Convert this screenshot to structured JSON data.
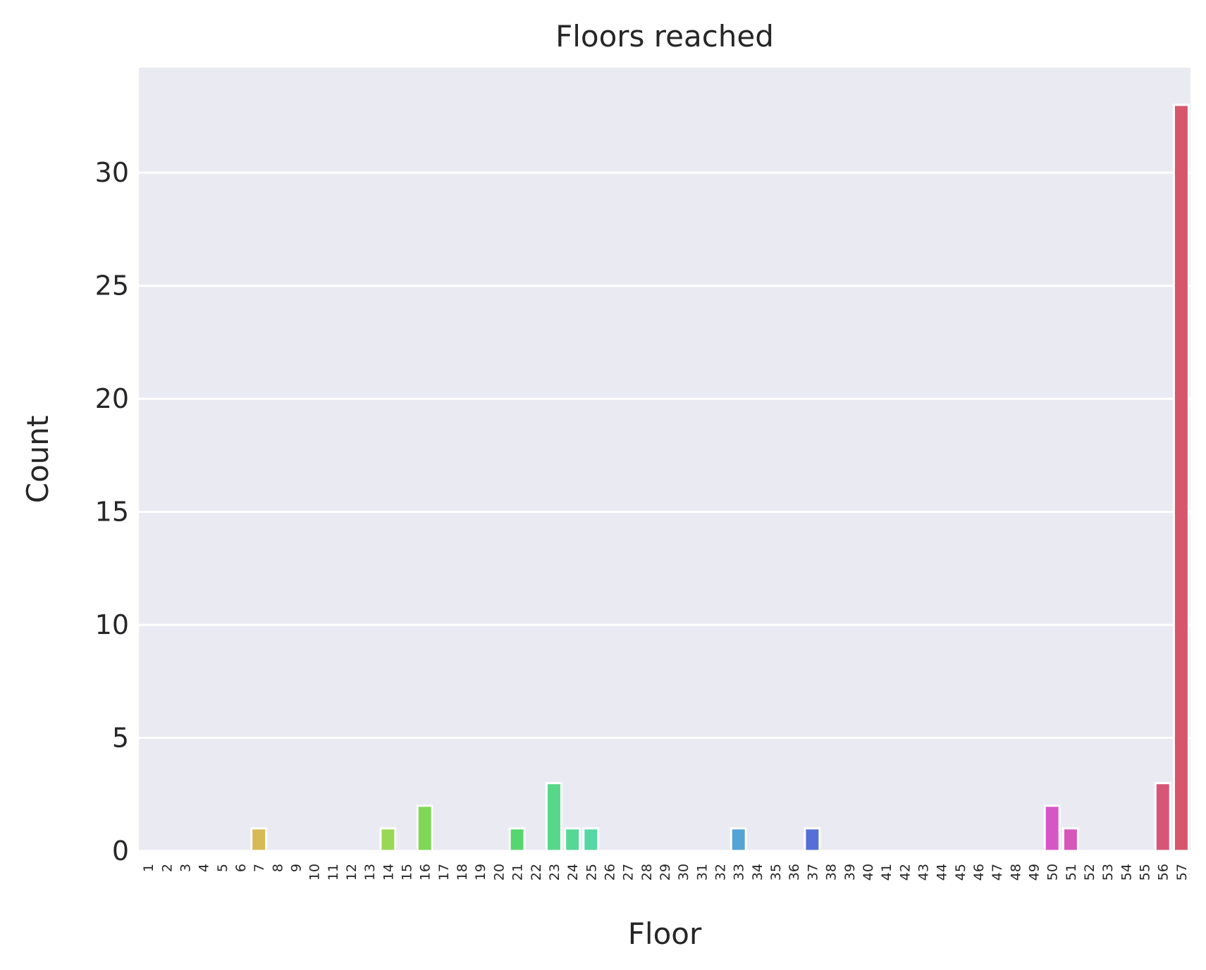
{
  "chart_data": {
    "type": "bar",
    "title": "Floors reached",
    "xlabel": "Floor",
    "ylabel": "Count",
    "categories": [
      "1",
      "2",
      "3",
      "4",
      "5",
      "6",
      "7",
      "8",
      "9",
      "10",
      "11",
      "12",
      "13",
      "14",
      "15",
      "16",
      "17",
      "18",
      "19",
      "20",
      "21",
      "22",
      "23",
      "24",
      "25",
      "26",
      "27",
      "28",
      "29",
      "30",
      "31",
      "32",
      "33",
      "34",
      "35",
      "36",
      "37",
      "38",
      "39",
      "40",
      "41",
      "42",
      "43",
      "44",
      "45",
      "46",
      "47",
      "48",
      "49",
      "50",
      "51",
      "52",
      "53",
      "54",
      "55",
      "56",
      "57"
    ],
    "values": [
      0,
      0,
      0,
      0,
      0,
      0,
      1,
      0,
      0,
      0,
      0,
      0,
      0,
      1,
      0,
      2,
      0,
      0,
      0,
      0,
      1,
      0,
      3,
      1,
      1,
      0,
      0,
      0,
      0,
      0,
      0,
      0,
      1,
      0,
      0,
      0,
      1,
      0,
      0,
      0,
      0,
      0,
      0,
      0,
      0,
      0,
      0,
      0,
      0,
      2,
      1,
      0,
      0,
      0,
      0,
      3,
      33
    ],
    "ylim": [
      0,
      34.65
    ],
    "yticks": [
      0,
      5,
      10,
      15,
      20,
      25,
      30
    ],
    "grid": true,
    "legend": "none",
    "colors": {
      "background": "#eaeaf2",
      "grid": "#ffffff",
      "bar_edge": "#ffffff",
      "palette_style": "husl"
    }
  }
}
